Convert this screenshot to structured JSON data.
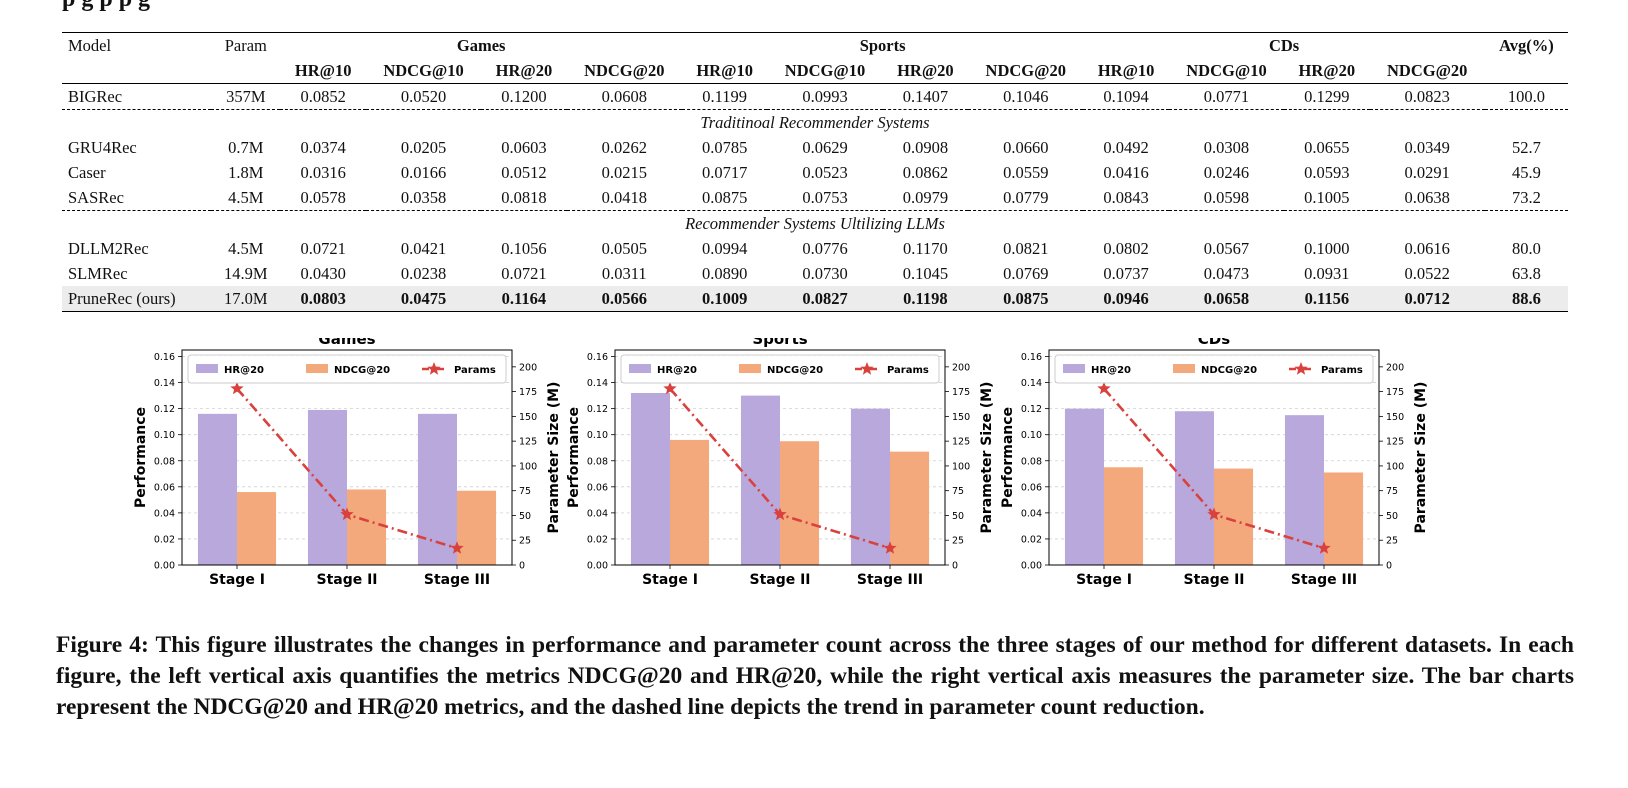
{
  "top_fragment": "p        g                                                                p        p        g",
  "table": {
    "header": {
      "model": "Model",
      "param": "Param",
      "datasets": [
        "Games",
        "Sports",
        "CDs"
      ],
      "avg": "Avg(%)",
      "metrics": [
        "HR@10",
        "NDCG@10",
        "HR@20",
        "NDCG@20",
        "HR@10",
        "NDCG@10",
        "HR@20",
        "NDCG@20",
        "HR@10",
        "NDCG@10",
        "HR@20",
        "NDCG@20"
      ]
    },
    "baseline": {
      "model": "BIGRec",
      "param": "357M",
      "values": [
        "0.0852",
        "0.0520",
        "0.1200",
        "0.0608",
        "0.1199",
        "0.0993",
        "0.1407",
        "0.1046",
        "0.1094",
        "0.0771",
        "0.1299",
        "0.0823"
      ],
      "avg": "100.0"
    },
    "section1_title": "Traditinoal Recommender Systems",
    "section1_rows": [
      {
        "model": "GRU4Rec",
        "param": "0.7M",
        "values": [
          "0.0374",
          "0.0205",
          "0.0603",
          "0.0262",
          "0.0785",
          "0.0629",
          "0.0908",
          "0.0660",
          "0.0492",
          "0.0308",
          "0.0655",
          "0.0349"
        ],
        "avg": "52.7"
      },
      {
        "model": "Caser",
        "param": "1.8M",
        "values": [
          "0.0316",
          "0.0166",
          "0.0512",
          "0.0215",
          "0.0717",
          "0.0523",
          "0.0862",
          "0.0559",
          "0.0416",
          "0.0246",
          "0.0593",
          "0.0291"
        ],
        "avg": "45.9"
      },
      {
        "model": "SASRec",
        "param": "4.5M",
        "values": [
          "0.0578",
          "0.0358",
          "0.0818",
          "0.0418",
          "0.0875",
          "0.0753",
          "0.0979",
          "0.0779",
          "0.0843",
          "0.0598",
          "0.1005",
          "0.0638"
        ],
        "avg": "73.2"
      }
    ],
    "section2_title": "Recommender Systems Ultilizing LLMs",
    "section2_rows": [
      {
        "model": "DLLM2Rec",
        "param": "4.5M",
        "values": [
          "0.0721",
          "0.0421",
          "0.1056",
          "0.0505",
          "0.0994",
          "0.0776",
          "0.1170",
          "0.0821",
          "0.0802",
          "0.0567",
          "0.1000",
          "0.0616"
        ],
        "avg": "80.0"
      },
      {
        "model": "SLMRec",
        "param": "14.9M",
        "values": [
          "0.0430",
          "0.0238",
          "0.0721",
          "0.0311",
          "0.0890",
          "0.0730",
          "0.1045",
          "0.0769",
          "0.0737",
          "0.0473",
          "0.0931",
          "0.0522"
        ],
        "avg": "63.8"
      }
    ],
    "ours": {
      "model": "PruneRec (ours)",
      "param": "17.0M",
      "values": [
        "0.0803",
        "0.0475",
        "0.1164",
        "0.0566",
        "0.1009",
        "0.0827",
        "0.1198",
        "0.0875",
        "0.0946",
        "0.0658",
        "0.1156",
        "0.0712"
      ],
      "avg": "88.6"
    }
  },
  "chart_data": [
    {
      "type": "bar",
      "title": "Games",
      "categories": [
        "Stage I",
        "Stage II",
        "Stage III"
      ],
      "series": [
        {
          "name": "HR@20",
          "values": [
            0.116,
            0.119,
            0.116
          ],
          "color": "#b9a8dc"
        },
        {
          "name": "NDCG@20",
          "values": [
            0.056,
            0.058,
            0.057
          ],
          "color": "#f4a97d"
        }
      ],
      "line_series": {
        "name": "Params",
        "values": [
          178,
          51,
          17
        ],
        "color": "#d9413d"
      },
      "ylabel": "Performance",
      "y2label": "Parameter Size (M)",
      "ylim": [
        0,
        0.165
      ],
      "y2lim": [
        0,
        217
      ],
      "yticks": [
        "0.00",
        "0.02",
        "0.04",
        "0.06",
        "0.08",
        "0.10",
        "0.12",
        "0.14",
        "0.16"
      ],
      "y2ticks": [
        "0",
        "25",
        "50",
        "75",
        "100",
        "125",
        "150",
        "175",
        "200"
      ],
      "grid": true,
      "legend": "top"
    },
    {
      "type": "bar",
      "title": "Sports",
      "categories": [
        "Stage I",
        "Stage II",
        "Stage III"
      ],
      "series": [
        {
          "name": "HR@20",
          "values": [
            0.132,
            0.13,
            0.12
          ],
          "color": "#b9a8dc"
        },
        {
          "name": "NDCG@20",
          "values": [
            0.096,
            0.095,
            0.087
          ],
          "color": "#f4a97d"
        }
      ],
      "line_series": {
        "name": "Params",
        "values": [
          178,
          51,
          17
        ],
        "color": "#d9413d"
      },
      "ylabel": "Performance",
      "y2label": "Parameter Size (M)",
      "ylim": [
        0,
        0.165
      ],
      "y2lim": [
        0,
        217
      ],
      "yticks": [
        "0.00",
        "0.02",
        "0.04",
        "0.06",
        "0.08",
        "0.10",
        "0.12",
        "0.14",
        "0.16"
      ],
      "y2ticks": [
        "0",
        "25",
        "50",
        "75",
        "100",
        "125",
        "150",
        "175",
        "200"
      ],
      "grid": true,
      "legend": "top"
    },
    {
      "type": "bar",
      "title": "CDs",
      "categories": [
        "Stage I",
        "Stage II",
        "Stage III"
      ],
      "series": [
        {
          "name": "HR@20",
          "values": [
            0.12,
            0.118,
            0.115
          ],
          "color": "#b9a8dc"
        },
        {
          "name": "NDCG@20",
          "values": [
            0.075,
            0.074,
            0.071
          ],
          "color": "#f4a97d"
        }
      ],
      "line_series": {
        "name": "Params",
        "values": [
          178,
          51,
          17
        ],
        "color": "#d9413d"
      },
      "ylabel": "Performance",
      "y2label": "Parameter Size (M)",
      "ylim": [
        0,
        0.165
      ],
      "y2lim": [
        0,
        217
      ],
      "yticks": [
        "0.00",
        "0.02",
        "0.04",
        "0.06",
        "0.08",
        "0.10",
        "0.12",
        "0.14",
        "0.16"
      ],
      "y2ticks": [
        "0",
        "25",
        "50",
        "75",
        "100",
        "125",
        "150",
        "175",
        "200"
      ],
      "grid": true,
      "legend": "top"
    }
  ],
  "caption": "Figure 4: This figure illustrates the changes in performance and parameter count across the three stages of our method for different datasets. In each figure, the left vertical axis quantifies the metrics NDCG@20 and HR@20, while the right vertical axis measures the parameter size. The bar charts represent the NDCG@20 and HR@20 metrics, and the dashed line depicts the trend in parameter count reduction."
}
